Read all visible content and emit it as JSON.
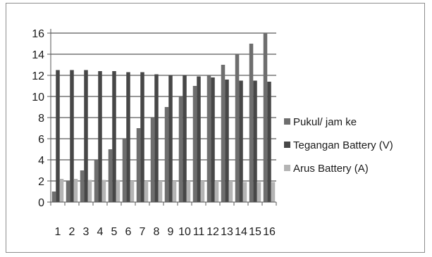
{
  "chart_data": {
    "type": "bar",
    "categories": [
      "1",
      "2",
      "3",
      "4",
      "5",
      "6",
      "7",
      "8",
      "9",
      "10",
      "11",
      "12",
      "13",
      "14",
      "15",
      "16"
    ],
    "series": [
      {
        "name": "Pukul/ jam ke",
        "color": "#6e6e6e",
        "values": [
          1,
          2,
          3,
          4,
          5,
          6,
          7,
          8,
          9,
          10,
          11,
          12,
          13,
          14,
          15,
          16
        ]
      },
      {
        "name": "Tegangan Battery (V)",
        "color": "#474747",
        "values": [
          12.5,
          12.5,
          12.5,
          12.4,
          12.4,
          12.3,
          12.3,
          12.1,
          12.0,
          12.0,
          11.9,
          11.8,
          11.6,
          11.5,
          11.5,
          11.4
        ]
      },
      {
        "name": "Arus Battery (A)",
        "color": "#b4b4b4",
        "values": [
          2.2,
          2.2,
          2.1,
          2.1,
          2.1,
          2.0,
          2.0,
          2.0,
          2.0,
          2.0,
          2.0,
          2.0,
          2.0,
          1.9,
          1.9,
          1.9
        ]
      }
    ],
    "yticks": [
      "0",
      "2",
      "4",
      "6",
      "8",
      "10",
      "12",
      "14",
      "16"
    ],
    "ylim": [
      0,
      16
    ],
    "grid": true,
    "legend": "right"
  }
}
